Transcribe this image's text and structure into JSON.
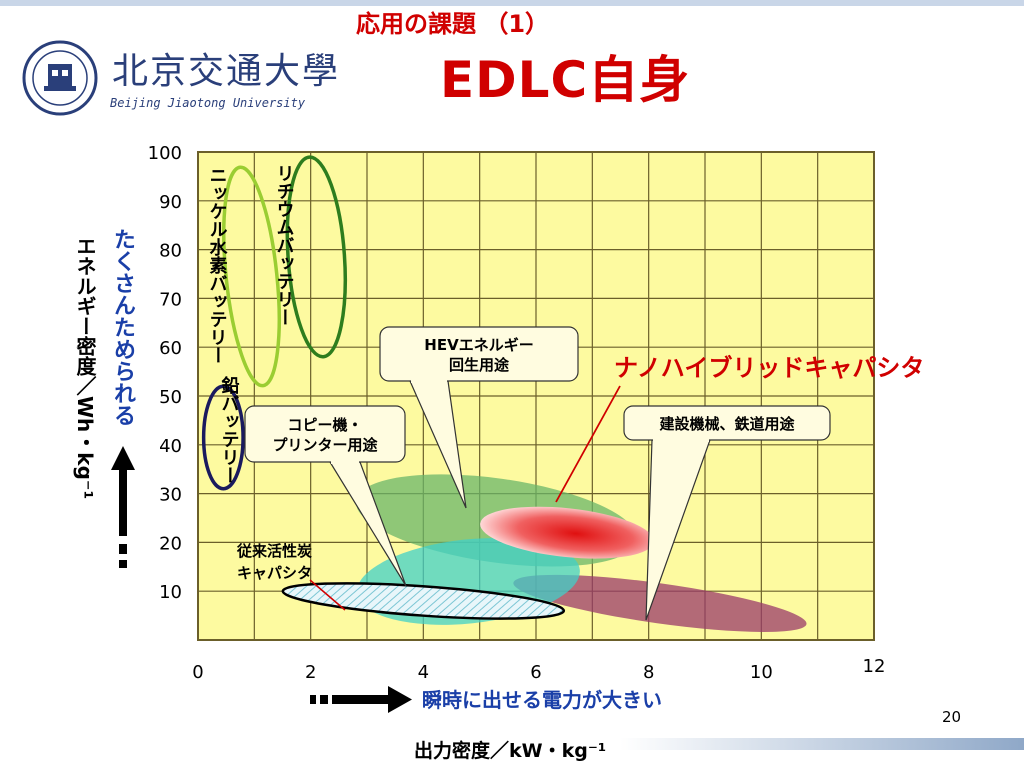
{
  "slide": {
    "subtitle": "応用の課題 （1）",
    "title": "EDLC自身",
    "logo_name": "北京交通大學",
    "logo_english": "Beijing Jiaotong University",
    "page_number": "20"
  },
  "chart_data": {
    "type": "scatter",
    "ylabel": "エネルギー密度／Wh・kg⁻¹",
    "y_hint": "たくさんためられる",
    "xlabel": "出力密度／kW・kg⁻¹",
    "x_hint": "瞬時に出せる電力が大きい",
    "xlim": [
      0,
      12
    ],
    "ylim": [
      0,
      100
    ],
    "x_ticks": [
      "0",
      "2",
      "4",
      "6",
      "8",
      "10",
      "12"
    ],
    "y_ticks": [
      "10",
      "20",
      "30",
      "40",
      "50",
      "60",
      "70",
      "80",
      "90",
      "100"
    ],
    "grid": true,
    "regions": [
      {
        "label": "リチウムバッテリー",
        "x_range": [
          1.6,
          2.6
        ],
        "y_range": [
          58,
          99
        ]
      },
      {
        "label": "ニッケル水素バッテリー",
        "x_range": [
          0.5,
          1.4
        ],
        "y_range": [
          52,
          97
        ]
      },
      {
        "label": "鉛バッテリー",
        "x_range": [
          0.1,
          0.8
        ],
        "y_range": [
          31,
          52
        ]
      },
      {
        "label": "従来活性炭キャパシタ",
        "x_range": [
          1.5,
          6.5
        ],
        "y_range": [
          5,
          11
        ]
      },
      {
        "label": "ナノハイブリッドキャパシタ",
        "x_range": [
          5.0,
          8.1
        ],
        "y_range": [
          17,
          27
        ]
      }
    ],
    "callouts": [
      {
        "text": "HEVエネルギー\n回生用途"
      },
      {
        "text": "コピー機・\nプリンター用途"
      },
      {
        "text": "建設機械、鉄道用途"
      }
    ],
    "colors": {
      "plot_bg": "#fdfaa0",
      "grid": "#6b5f2a",
      "lithium": "#2e7d1e",
      "nickel": "#9acd32",
      "lead": "#1a1a5e",
      "nano": "#e02020",
      "hev_region": "#6ab56a",
      "copy_region": "#40d0c8",
      "construction_region": "#9a3a6a",
      "capacitor_hatch": "#8ad0d8",
      "accent_text": "#d00000",
      "hint_text": "#1a3fa8"
    }
  }
}
